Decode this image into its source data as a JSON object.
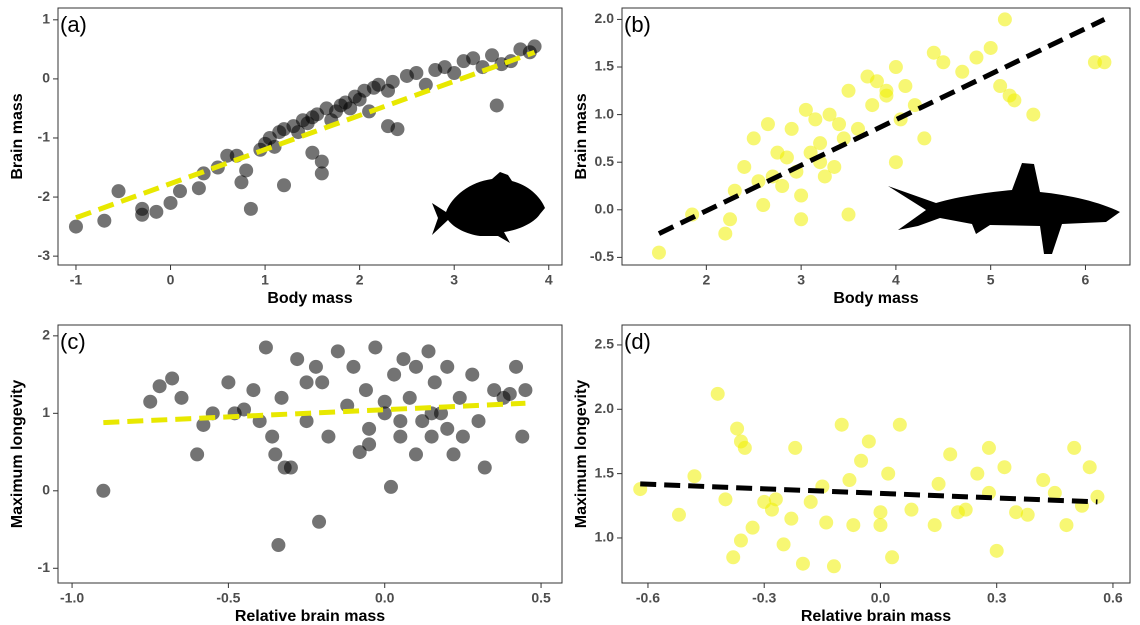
{
  "chart_data": [
    {
      "type": "scatter",
      "panel_label": "(a)",
      "x_label": "Body mass",
      "y_label": "Brain mass",
      "color": "#000000",
      "alpha": 0.55,
      "xlim": [
        -1.19,
        4.14
      ],
      "ylim": [
        -3.15,
        1.2
      ],
      "xticks": [
        -1,
        0,
        1,
        2,
        3,
        4
      ],
      "yticks": [
        -3,
        -2,
        -1,
        0,
        1
      ],
      "x": [
        -1,
        -0.7,
        -0.55,
        -0.3,
        -0.3,
        -0.15,
        0,
        0.1,
        0.3,
        0.35,
        0.5,
        0.6,
        0.7,
        0.8,
        0.85,
        0.95,
        1,
        1.05,
        1.1,
        1.15,
        1.2,
        1.3,
        1.35,
        1.4,
        1.45,
        1.5,
        1.55,
        1.6,
        1.65,
        1.7,
        1.75,
        1.8,
        1.85,
        1.9,
        1.95,
        2,
        2.05,
        2.1,
        2.15,
        2.2,
        2.3,
        2.35,
        2.4,
        2.5,
        2.6,
        2.7,
        2.8,
        2.9,
        3,
        3.1,
        3.2,
        3.3,
        3.4,
        3.5,
        3.6,
        3.7,
        3.8,
        3.85,
        0.75,
        1.2,
        1.5,
        1.6,
        2.3,
        3.45
      ],
      "y": [
        -2.5,
        -2.4,
        -1.9,
        -2.3,
        -2.2,
        -2.25,
        -2.1,
        -1.9,
        -1.85,
        -1.6,
        -1.5,
        -1.3,
        -1.3,
        -1.55,
        -2.2,
        -1.2,
        -1.1,
        -1.0,
        -1.15,
        -0.9,
        -0.85,
        -0.8,
        -0.9,
        -0.7,
        -0.75,
        -0.65,
        -0.6,
        -1.4,
        -0.5,
        -0.7,
        -0.55,
        -0.45,
        -0.4,
        -0.5,
        -0.3,
        -0.35,
        -0.2,
        -0.55,
        -0.15,
        -0.1,
        -0.2,
        -0.05,
        -0.85,
        0.05,
        0.1,
        -0.1,
        0.15,
        0.2,
        0.1,
        0.3,
        0.35,
        0.2,
        0.4,
        0.25,
        0.3,
        0.5,
        0.45,
        0.55,
        -1.75,
        -1.8,
        -1.25,
        -1.6,
        -0.8,
        -0.45
      ],
      "trend": {
        "x": [
          -1,
          3.85
        ],
        "y": [
          -2.35,
          0.45
        ],
        "color": "#e8e800"
      }
    },
    {
      "type": "scatter",
      "panel_label": "(b)",
      "x_label": "Body mass",
      "y_label": "Brain mass",
      "color": "#f0f000",
      "alpha": 0.55,
      "xlim": [
        1.11,
        6.47
      ],
      "ylim": [
        -0.58,
        2.12
      ],
      "xticks": [
        2,
        3,
        4,
        5,
        6
      ],
      "yticks": [
        -0.5,
        {
          "value": 0,
          "label": "0.0"
        },
        0.5,
        {
          "value": 1,
          "label": "1.0"
        },
        1.5,
        {
          "value": 2,
          "label": "2.0"
        }
      ],
      "x": [
        1.5,
        1.85,
        2.2,
        2.25,
        2.3,
        2.4,
        2.5,
        2.55,
        2.6,
        2.7,
        2.75,
        2.8,
        2.85,
        2.9,
        2.95,
        3,
        3.05,
        3.1,
        3.15,
        3.2,
        3.25,
        3.3,
        3.35,
        3.4,
        3.45,
        3.5,
        3.6,
        3.7,
        3.75,
        3.8,
        3.9,
        4,
        4.05,
        4.1,
        4.2,
        4.3,
        4.4,
        4.5,
        4.7,
        4.85,
        5,
        5.1,
        5.15,
        5.2,
        5.25,
        5.45,
        6.1,
        6.2,
        3.5,
        3.2,
        2.65,
        3.0,
        3.9,
        4.0
      ],
      "y": [
        -0.45,
        -0.05,
        -0.25,
        -0.1,
        0.2,
        0.45,
        0.75,
        0.3,
        0.05,
        0.35,
        0.6,
        0.25,
        0.55,
        0.85,
        0.4,
        0.15,
        1.05,
        0.6,
        0.95,
        0.5,
        0.35,
        1.0,
        0.45,
        0.9,
        0.75,
        1.25,
        0.85,
        1.4,
        1.1,
        1.35,
        1.2,
        1.5,
        0.95,
        1.3,
        1.1,
        0.75,
        1.65,
        1.55,
        1.45,
        1.6,
        1.7,
        1.3,
        2.0,
        1.2,
        1.15,
        1.0,
        1.55,
        1.55,
        -0.05,
        0.7,
        0.9,
        -0.1,
        1.25,
        0.5
      ],
      "trend": {
        "x": [
          1.5,
          6.2
        ],
        "y": [
          -0.25,
          2.0
        ],
        "color": "#000000"
      }
    },
    {
      "type": "scatter",
      "panel_label": "(c)",
      "x_label": "Relative brain mass",
      "y_label": "Maximum longevity",
      "color": "#000000",
      "alpha": 0.55,
      "xlim": [
        -1.045,
        0.567
      ],
      "ylim": [
        -1.19,
        2.14
      ],
      "xticks": [
        {
          "value": -1,
          "label": "-1.0"
        },
        -0.5,
        {
          "value": 0,
          "label": "0.0"
        },
        0.5
      ],
      "yticks": [
        -1,
        0,
        1,
        2
      ],
      "x": [
        -0.9,
        -0.75,
        -0.72,
        -0.68,
        -0.65,
        -0.6,
        -0.58,
        -0.55,
        -0.5,
        -0.48,
        -0.45,
        -0.42,
        -0.4,
        -0.38,
        -0.36,
        -0.35,
        -0.34,
        -0.33,
        -0.32,
        -0.3,
        -0.28,
        -0.25,
        -0.22,
        -0.21,
        -0.2,
        -0.18,
        -0.15,
        -0.12,
        -0.1,
        -0.08,
        -0.06,
        -0.05,
        -0.03,
        0,
        0.02,
        0.03,
        0.05,
        0.06,
        0.08,
        0.1,
        0.1,
        0.12,
        0.14,
        0.15,
        0.16,
        0.18,
        0.2,
        0.22,
        0.24,
        0.25,
        0.28,
        0.3,
        0.32,
        0.35,
        0.38,
        0.4,
        0.42,
        0.44,
        0.45,
        -0.05,
        0.05,
        0.15,
        -0.25,
        0.0,
        0.2
      ],
      "y": [
        0.0,
        1.15,
        1.35,
        1.45,
        1.2,
        0.47,
        0.85,
        1.0,
        1.4,
        1.0,
        1.05,
        1.3,
        0.9,
        1.85,
        0.7,
        0.47,
        -0.7,
        1.2,
        0.3,
        0.3,
        1.7,
        0.9,
        1.6,
        -0.4,
        1.4,
        0.7,
        1.8,
        1.1,
        1.6,
        0.5,
        1.3,
        0.8,
        1.85,
        1.0,
        0.05,
        1.5,
        0.7,
        1.7,
        1.2,
        1.6,
        0.47,
        0.9,
        1.8,
        0.7,
        1.4,
        1.0,
        1.6,
        0.47,
        1.2,
        0.7,
        1.5,
        0.9,
        0.3,
        1.3,
        1.2,
        1.25,
        1.6,
        0.7,
        1.3,
        0.6,
        0.9,
        1.0,
        1.4,
        1.15,
        0.8
      ],
      "trend": {
        "x": [
          -0.9,
          0.45
        ],
        "y": [
          0.88,
          1.13
        ],
        "color": "#e8e800"
      }
    },
    {
      "type": "scatter",
      "panel_label": "(d)",
      "x_label": "Relative brain mass",
      "y_label": "Maximum longevity",
      "color": "#f0f000",
      "alpha": 0.55,
      "xlim": [
        -0.667,
        0.644
      ],
      "ylim": [
        0.65,
        2.655
      ],
      "xticks": [
        -0.6,
        -0.3,
        {
          "value": 0,
          "label": "0.0"
        },
        0.3,
        0.6
      ],
      "yticks": [
        {
          "value": 1,
          "label": "1.0"
        },
        1.5,
        {
          "value": 2,
          "label": "2.0"
        },
        2.5
      ],
      "x": [
        -0.62,
        -0.52,
        -0.48,
        -0.42,
        -0.4,
        -0.38,
        -0.37,
        -0.36,
        -0.35,
        -0.33,
        -0.3,
        -0.28,
        -0.27,
        -0.25,
        -0.22,
        -0.2,
        -0.18,
        -0.15,
        -0.12,
        -0.1,
        -0.08,
        -0.07,
        -0.05,
        -0.03,
        0.0,
        0.02,
        0.03,
        0.05,
        0.08,
        0.14,
        0.15,
        0.18,
        0.2,
        0.22,
        0.25,
        0.28,
        0.3,
        0.32,
        0.35,
        0.38,
        0.42,
        0.45,
        0.48,
        0.5,
        0.52,
        0.54,
        0.56,
        -0.14,
        -0.36,
        -0.23,
        0.28,
        0.0
      ],
      "y": [
        1.38,
        1.18,
        1.48,
        2.12,
        1.3,
        0.85,
        1.85,
        1.75,
        1.7,
        1.08,
        1.28,
        1.22,
        1.3,
        0.95,
        1.7,
        0.8,
        1.28,
        1.4,
        0.78,
        1.88,
        1.45,
        1.1,
        1.6,
        1.75,
        1.1,
        1.5,
        0.85,
        1.88,
        1.22,
        1.1,
        1.42,
        1.65,
        1.2,
        1.22,
        1.5,
        1.7,
        0.9,
        1.55,
        1.2,
        1.18,
        1.45,
        1.35,
        1.1,
        1.7,
        1.25,
        1.55,
        1.32,
        1.12,
        0.98,
        1.15,
        1.35,
        1.2
      ],
      "trend": {
        "x": [
          -0.62,
          0.56
        ],
        "y": [
          1.42,
          1.28
        ],
        "color": "#000000"
      }
    }
  ]
}
